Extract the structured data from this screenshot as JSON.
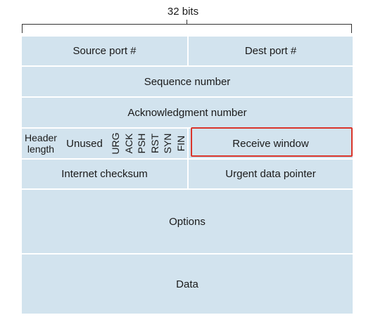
{
  "width_label": "32 bits",
  "rows": {
    "source_port": "Source port #",
    "dest_port": "Dest port #",
    "sequence_number": "Sequence number",
    "ack_number": "Acknowledgment number",
    "header_length_line1": "Header",
    "header_length_line2": "length",
    "unused": "Unused",
    "flags": [
      "URG",
      "ACK",
      "PSH",
      "RST",
      "SYN",
      "FIN"
    ],
    "receive_window": "Receive window",
    "internet_checksum": "Internet checksum",
    "urgent_pointer": "Urgent data pointer",
    "options": "Options",
    "data": "Data"
  },
  "colors": {
    "field_fill": "#d2e3ee",
    "highlight": "#d9352b"
  }
}
